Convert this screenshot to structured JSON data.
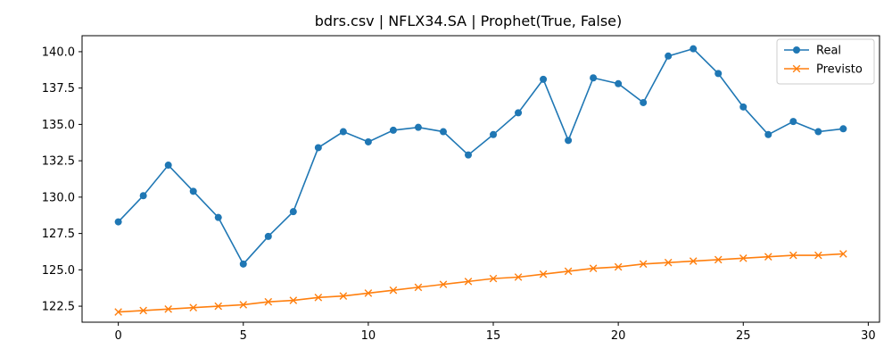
{
  "chart_data": {
    "type": "line",
    "title": "bdrs.csv | NFLX34.SA | Prophet(True, False)",
    "xlabel": "",
    "ylabel": "",
    "xlim": [
      -1.45,
      30.45
    ],
    "ylim": [
      121.4,
      141.1
    ],
    "x_ticks": [
      0,
      5,
      10,
      15,
      20,
      25,
      30
    ],
    "y_ticks": [
      122.5,
      125.0,
      127.5,
      130.0,
      132.5,
      135.0,
      137.5,
      140.0
    ],
    "y_tick_labels": [
      "122.5",
      "125.0",
      "127.5",
      "130.0",
      "132.5",
      "135.0",
      "137.5",
      "140.0"
    ],
    "grid": false,
    "legend_position": "top-right",
    "x": [
      0,
      1,
      2,
      3,
      4,
      5,
      6,
      7,
      8,
      9,
      10,
      11,
      12,
      13,
      14,
      15,
      16,
      17,
      18,
      19,
      20,
      21,
      22,
      23,
      24,
      25,
      26,
      27,
      28,
      29
    ],
    "series": [
      {
        "name": "Real",
        "color": "#1f77b4",
        "marker": "circle",
        "values": [
          128.3,
          130.1,
          132.2,
          130.4,
          128.6,
          125.4,
          127.3,
          129.0,
          133.4,
          134.5,
          133.8,
          134.6,
          134.8,
          134.5,
          132.9,
          134.3,
          135.8,
          138.1,
          133.9,
          138.2,
          137.8,
          136.5,
          139.7,
          140.2,
          138.5,
          136.2,
          134.3,
          135.2,
          134.5,
          134.7
        ]
      },
      {
        "name": "Previsto",
        "color": "#ff7f0e",
        "marker": "x",
        "values": [
          122.1,
          122.2,
          122.3,
          122.4,
          122.5,
          122.6,
          122.8,
          122.9,
          123.1,
          123.2,
          123.4,
          123.6,
          123.8,
          124.0,
          124.2,
          124.4,
          124.5,
          124.7,
          124.9,
          125.1,
          125.2,
          125.4,
          125.5,
          125.6,
          125.7,
          125.8,
          125.9,
          126.0,
          126.0,
          126.1
        ]
      }
    ]
  }
}
